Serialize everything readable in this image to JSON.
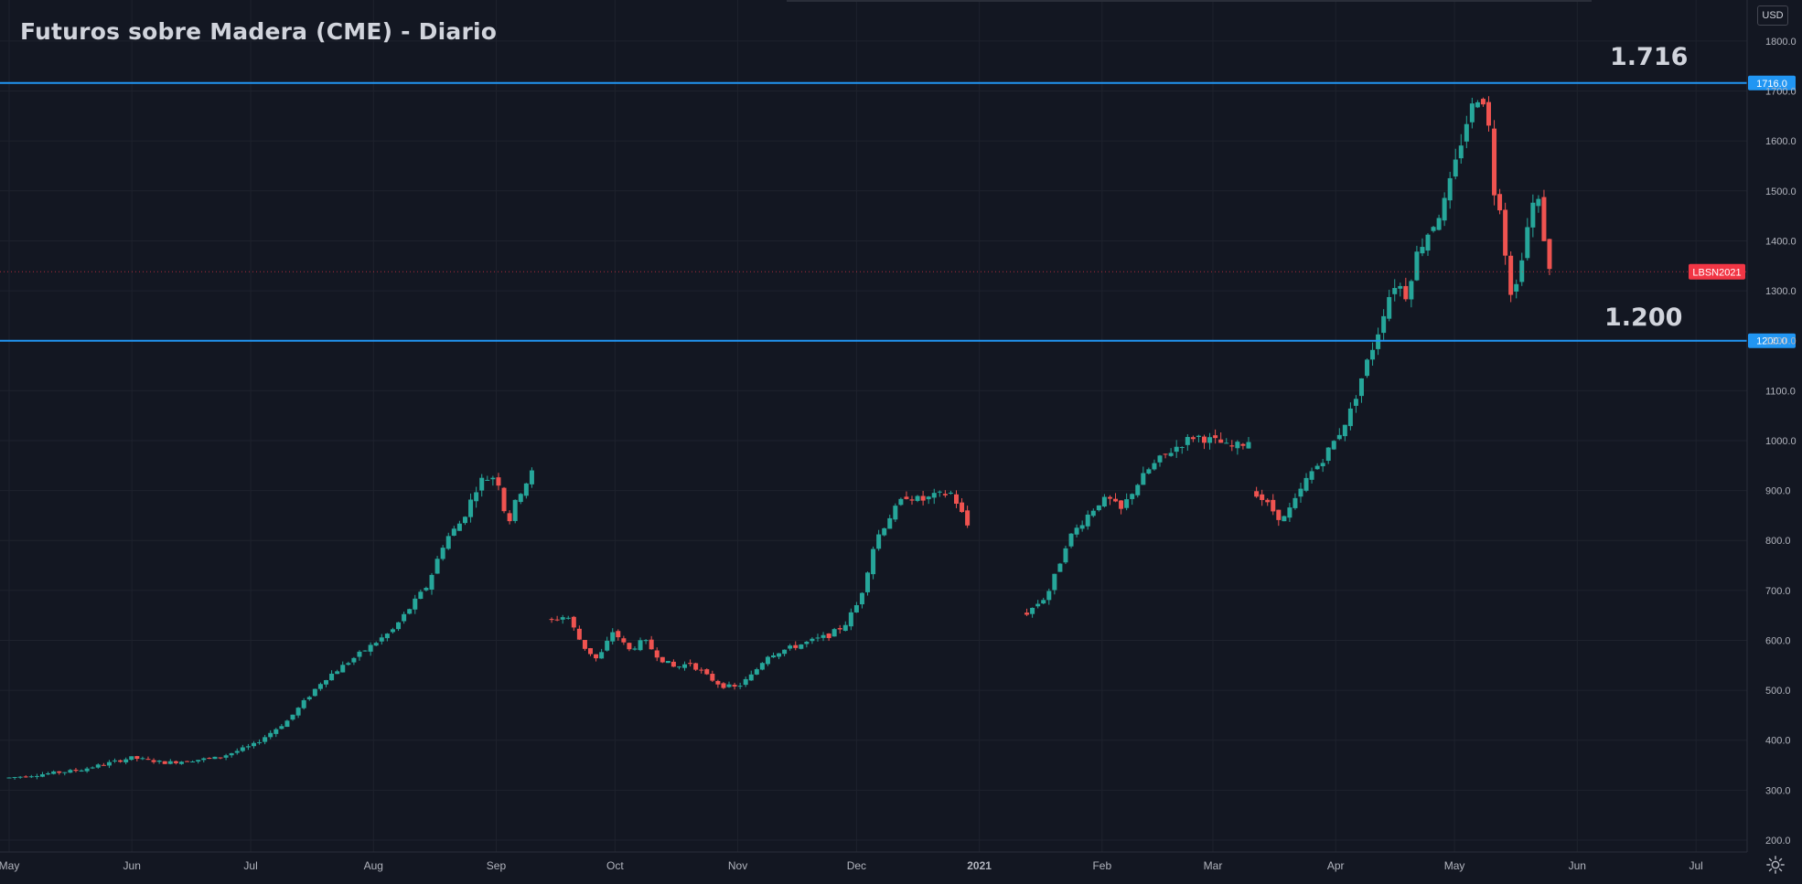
{
  "title": "Futuros sobre Madera (CME) - Diario",
  "currency": "USD",
  "annotations": {
    "resistance_label": "1.716",
    "support_label": "1.200"
  },
  "colors": {
    "background": "#131722",
    "up": "#26a69a",
    "down": "#ef5350",
    "level_line": "#2196f3",
    "grid": "#1e222d",
    "text": "#d1d4dc",
    "current_price": "#f23645"
  },
  "icons": {
    "settings": "gear-icon"
  },
  "chart_data": {
    "type": "candlestick",
    "symbol_label": "LBSN2021",
    "current_price": 1338,
    "y_axis": {
      "ticks": [
        "200.0",
        "300.0",
        "400.0",
        "500.0",
        "600.0",
        "700.0",
        "800.0",
        "900.0",
        "1000.0",
        "1100.0",
        "1200.0",
        "1300.0",
        "1400.0",
        "1500.0",
        "1600.0",
        "1700.0",
        "1800.0"
      ],
      "range": [
        180,
        1830
      ]
    },
    "x_axis": {
      "labels": [
        "May",
        "Jun",
        "Jul",
        "Aug",
        "Sep",
        "Oct",
        "Nov",
        "Dec",
        "2021",
        "Feb",
        "Mar",
        "Apr",
        "May",
        "Jun",
        "Jul"
      ]
    },
    "horizontal_levels": [
      {
        "value": 1716,
        "label": "1716.0"
      },
      {
        "value": 1200,
        "label": "1200.0"
      }
    ],
    "segments": [
      {
        "start": "2020-05-01",
        "end": "2020-09-10",
        "points": [
          [
            0,
            325
          ],
          [
            20,
            340
          ],
          [
            35,
            365
          ],
          [
            45,
            355
          ],
          [
            60,
            365
          ],
          [
            70,
            390
          ],
          [
            80,
            440
          ],
          [
            90,
            520
          ],
          [
            100,
            570
          ],
          [
            110,
            620
          ],
          [
            120,
            710
          ],
          [
            125,
            800
          ],
          [
            130,
            840
          ],
          [
            135,
            920
          ],
          [
            140,
            930
          ],
          [
            143,
            830
          ],
          [
            146,
            890
          ],
          [
            150,
            935
          ]
        ]
      },
      {
        "start": "2020-09-15",
        "end": "2020-12-29",
        "points": [
          [
            0,
            640
          ],
          [
            5,
            650
          ],
          [
            10,
            590
          ],
          [
            15,
            560
          ],
          [
            20,
            620
          ],
          [
            25,
            580
          ],
          [
            30,
            600
          ],
          [
            35,
            565
          ],
          [
            40,
            545
          ],
          [
            45,
            555
          ],
          [
            50,
            530
          ],
          [
            55,
            510
          ],
          [
            60,
            505
          ],
          [
            65,
            530
          ],
          [
            70,
            570
          ],
          [
            80,
            590
          ],
          [
            90,
            610
          ],
          [
            95,
            630
          ],
          [
            100,
            680
          ],
          [
            105,
            800
          ],
          [
            110,
            850
          ],
          [
            115,
            890
          ],
          [
            120,
            880
          ],
          [
            125,
            890
          ],
          [
            130,
            895
          ],
          [
            135,
            830
          ]
        ]
      },
      {
        "start": "2021-01-13",
        "end": "2021-03-10",
        "points": [
          [
            0,
            655
          ],
          [
            6,
            690
          ],
          [
            9,
            740
          ],
          [
            12,
            800
          ],
          [
            18,
            850
          ],
          [
            22,
            880
          ],
          [
            25,
            880
          ],
          [
            28,
            860
          ],
          [
            32,
            905
          ],
          [
            36,
            940
          ],
          [
            40,
            965
          ],
          [
            45,
            990
          ],
          [
            50,
            1010
          ],
          [
            55,
            1000
          ],
          [
            58,
            995
          ],
          [
            60,
            985
          ],
          [
            63,
            990
          ],
          [
            66,
            1000
          ]
        ]
      },
      {
        "start": "2021-03-12",
        "end": "2021-05-25",
        "points": [
          [
            0,
            895
          ],
          [
            5,
            860
          ],
          [
            8,
            840
          ],
          [
            12,
            880
          ],
          [
            16,
            930
          ],
          [
            20,
            960
          ],
          [
            25,
            1010
          ],
          [
            29,
            1060
          ],
          [
            33,
            1140
          ],
          [
            37,
            1210
          ],
          [
            40,
            1280
          ],
          [
            43,
            1320
          ],
          [
            46,
            1290
          ],
          [
            49,
            1370
          ],
          [
            52,
            1410
          ],
          [
            55,
            1440
          ],
          [
            58,
            1480
          ],
          [
            61,
            1550
          ],
          [
            64,
            1630
          ],
          [
            67,
            1680
          ],
          [
            69,
            1700
          ],
          [
            71,
            1650
          ],
          [
            73,
            1500
          ],
          [
            75,
            1470
          ],
          [
            77,
            1340
          ],
          [
            79,
            1270
          ],
          [
            80,
            1320
          ],
          [
            82,
            1390
          ],
          [
            84,
            1450
          ],
          [
            86,
            1500
          ],
          [
            88,
            1420
          ],
          [
            90,
            1338
          ]
        ]
      }
    ]
  }
}
